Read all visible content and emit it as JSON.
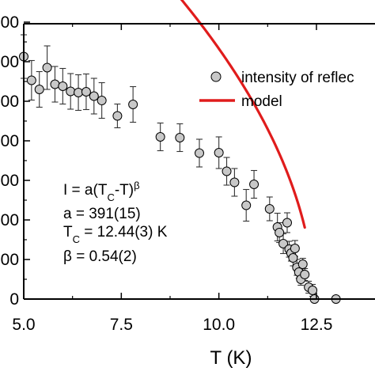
{
  "chart_data": {
    "type": "scatter",
    "title": "",
    "xlabel": "T (K)",
    "ylabel": "",
    "xlim": [
      5.0,
      13.5
    ],
    "ylim": [
      0,
      700
    ],
    "x_ticks": [
      5.0,
      7.5,
      10.0,
      12.5
    ],
    "x_tick_labels": [
      "5.0",
      "7.5",
      "10.0",
      "12.5"
    ],
    "y_ticks": [
      0,
      100,
      200,
      300,
      400,
      500,
      600,
      700
    ],
    "y_tick_labels": [
      "0",
      "00",
      "00",
      "00",
      "00",
      "00",
      "00",
      "00"
    ],
    "grid": false,
    "legend_position": "top-right",
    "series": [
      {
        "name": "intensity of reflec",
        "kind": "points",
        "marker": "circle",
        "fill_color": "#c8c8c8",
        "edge_color": "#000000",
        "points": [
          {
            "x": 5.0,
            "y": 613,
            "err": 55
          },
          {
            "x": 5.2,
            "y": 553,
            "err": 50
          },
          {
            "x": 5.4,
            "y": 530,
            "err": 45
          },
          {
            "x": 5.6,
            "y": 585,
            "err": 55
          },
          {
            "x": 5.8,
            "y": 543,
            "err": 45
          },
          {
            "x": 6.0,
            "y": 538,
            "err": 45
          },
          {
            "x": 6.2,
            "y": 525,
            "err": 45
          },
          {
            "x": 6.4,
            "y": 522,
            "err": 45
          },
          {
            "x": 6.6,
            "y": 524,
            "err": 45
          },
          {
            "x": 6.8,
            "y": 513,
            "err": 45
          },
          {
            "x": 7.0,
            "y": 502,
            "err": 45
          },
          {
            "x": 7.4,
            "y": 463,
            "err": 30
          },
          {
            "x": 7.8,
            "y": 492,
            "err": 45
          },
          {
            "x": 8.5,
            "y": 410,
            "err": 35
          },
          {
            "x": 9.0,
            "y": 408,
            "err": 35
          },
          {
            "x": 9.5,
            "y": 369,
            "err": 35
          },
          {
            "x": 10.0,
            "y": 370,
            "err": 40
          },
          {
            "x": 10.2,
            "y": 323,
            "err": 35
          },
          {
            "x": 10.4,
            "y": 295,
            "err": 35
          },
          {
            "x": 10.7,
            "y": 237,
            "err": 40
          },
          {
            "x": 10.9,
            "y": 290,
            "err": 35
          },
          {
            "x": 11.3,
            "y": 228,
            "err": 30
          },
          {
            "x": 11.5,
            "y": 182,
            "err": 35
          },
          {
            "x": 11.55,
            "y": 168,
            "err": 25
          },
          {
            "x": 11.65,
            "y": 140,
            "err": 25
          },
          {
            "x": 11.75,
            "y": 193,
            "err": 25
          },
          {
            "x": 11.8,
            "y": 126,
            "err": 20
          },
          {
            "x": 11.85,
            "y": 116,
            "err": 20
          },
          {
            "x": 11.9,
            "y": 104,
            "err": 20
          },
          {
            "x": 11.95,
            "y": 128,
            "err": 20
          },
          {
            "x": 12.0,
            "y": 80,
            "err": 20
          },
          {
            "x": 12.05,
            "y": 68,
            "err": 15
          },
          {
            "x": 12.1,
            "y": 50,
            "err": 15
          },
          {
            "x": 12.15,
            "y": 88,
            "err": 15
          },
          {
            "x": 12.2,
            "y": 62,
            "err": 15
          },
          {
            "x": 12.3,
            "y": 30,
            "err": 15
          },
          {
            "x": 12.4,
            "y": 22,
            "err": 15
          },
          {
            "x": 12.45,
            "y": 0,
            "err": 0
          },
          {
            "x": 13.0,
            "y": 0,
            "err": 0
          }
        ]
      },
      {
        "name": "model",
        "kind": "line",
        "color": "#e01c1c",
        "x_range": [
          5.2,
          12.2
        ],
        "formula": {
          "a": 391,
          "Tc": 12.44,
          "beta": 0.54
        }
      }
    ],
    "annotations": [
      {
        "id": "formula",
        "parts": [
          {
            "text": "I = a(T"
          },
          {
            "text": "C",
            "shift": "sub"
          },
          {
            "text": "-T)"
          },
          {
            "text": "β",
            "shift": "super"
          }
        ]
      },
      {
        "id": "a_value",
        "parts": [
          {
            "text": "a = 391(15)"
          }
        ]
      },
      {
        "id": "tc_value",
        "parts": [
          {
            "text": "T"
          },
          {
            "text": "C",
            "shift": "sub"
          },
          {
            "text": " = 12.44(3) K"
          }
        ]
      },
      {
        "id": "beta_value",
        "parts": [
          {
            "text": "β = 0.54(2)"
          }
        ]
      }
    ]
  }
}
